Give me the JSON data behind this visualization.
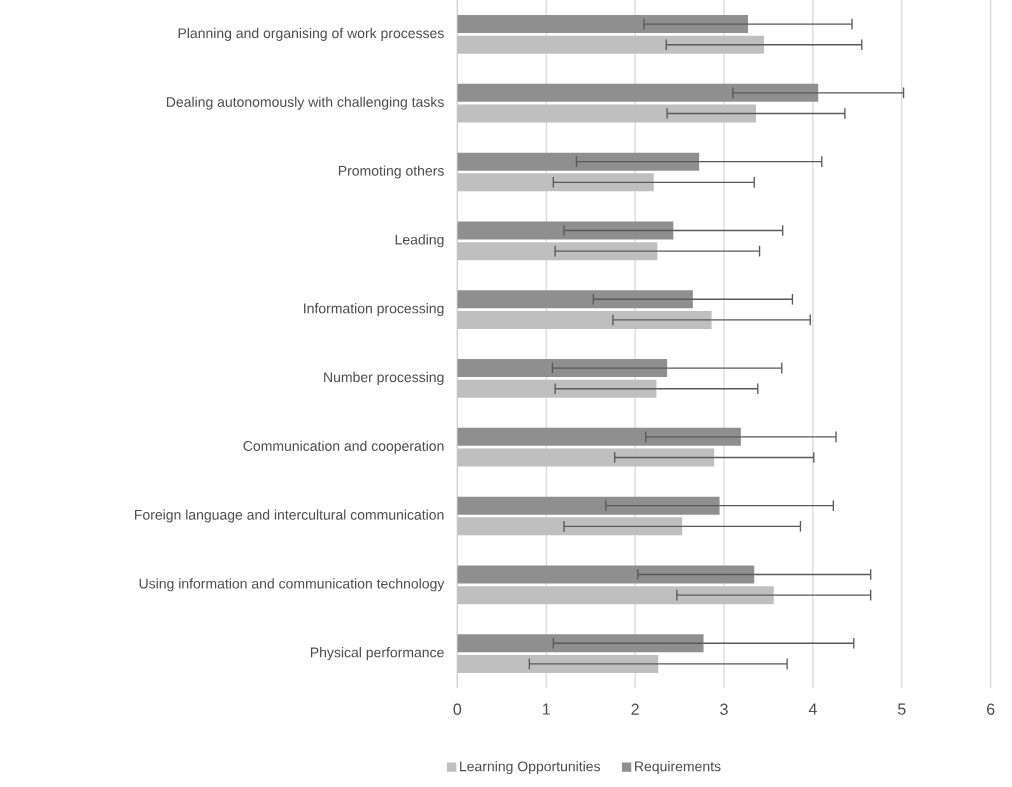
{
  "chart_data": {
    "type": "bar",
    "orientation": "horizontal",
    "categories": [
      "Planning and organising of work processes",
      "Dealing autonomously with challenging tasks",
      "Promoting others",
      "Leading",
      "Information processing",
      "Number processing",
      "Communication and cooperation",
      "Foreign language and intercultural communication",
      "Using information and communication technology",
      "Physical performance"
    ],
    "series": [
      {
        "name": "Learning Opportunities",
        "color": "#bfbfbf",
        "values": [
          3.45,
          3.36,
          2.21,
          2.25,
          2.86,
          2.24,
          2.89,
          2.53,
          3.56,
          2.26
        ],
        "errors": [
          1.1,
          1.0,
          1.13,
          1.15,
          1.11,
          1.14,
          1.12,
          1.33,
          1.09,
          1.45
        ]
      },
      {
        "name": "Requirements",
        "color": "#8f8f8f",
        "values": [
          3.27,
          4.06,
          2.72,
          2.43,
          2.65,
          2.36,
          3.19,
          2.95,
          3.34,
          2.77
        ],
        "errors": [
          1.17,
          0.96,
          1.38,
          1.23,
          1.12,
          1.29,
          1.07,
          1.28,
          1.31,
          1.69
        ]
      }
    ],
    "xlim": [
      0,
      6
    ],
    "xticks": [
      0,
      1,
      2,
      3,
      4,
      5,
      6
    ],
    "grid": "x",
    "legend": "bottom"
  }
}
